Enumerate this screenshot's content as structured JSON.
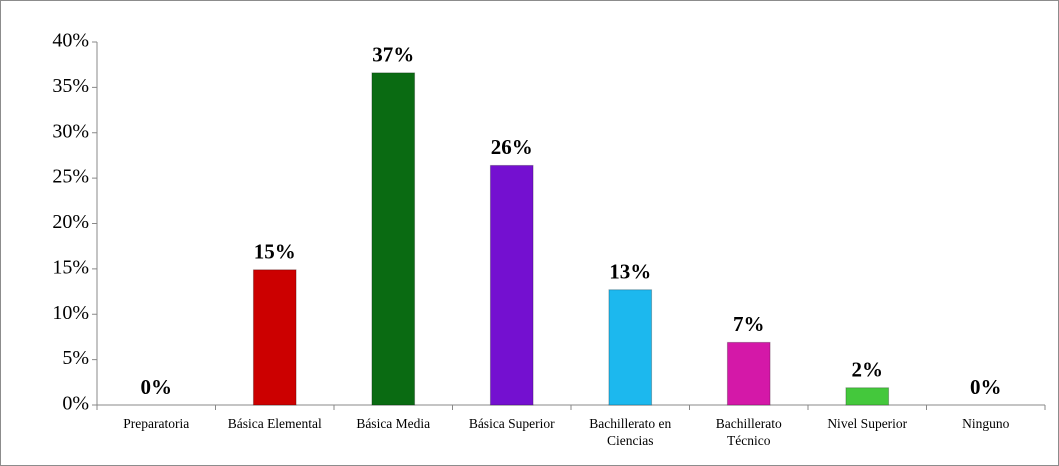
{
  "chart_data": {
    "type": "bar",
    "categories": [
      "Preparatoria",
      "Básica Elemental",
      "Básica Media",
      "Básica Superior",
      "Bachillerato en Ciencias",
      "Bachillerato Técnico",
      "Nivel Superior",
      "Ninguno"
    ],
    "values": [
      0,
      14.9,
      36.6,
      26.4,
      12.7,
      6.9,
      1.9,
      0
    ],
    "value_labels": [
      "0%",
      "15%",
      "37%",
      "26%",
      "13%",
      "7%",
      "2%",
      "0%"
    ],
    "colors": [
      "#cc0000",
      "#cc0000",
      "#0a6b12",
      "#7410d0",
      "#1cb8ee",
      "#d418a8",
      "#44c83c",
      "#44c83c"
    ],
    "ylim": [
      0,
      40
    ],
    "yticks": [
      {
        "value": 0,
        "label": "0%"
      },
      {
        "value": 5,
        "label": "5%"
      },
      {
        "value": 10,
        "label": "10%"
      },
      {
        "value": 15,
        "label": "15%"
      },
      {
        "value": 20,
        "label": "20%"
      },
      {
        "value": 25,
        "label": "25%"
      },
      {
        "value": 30,
        "label": "30%"
      },
      {
        "value": 35,
        "label": "35%"
      },
      {
        "value": 40,
        "label": "40%"
      }
    ],
    "grid": false
  }
}
